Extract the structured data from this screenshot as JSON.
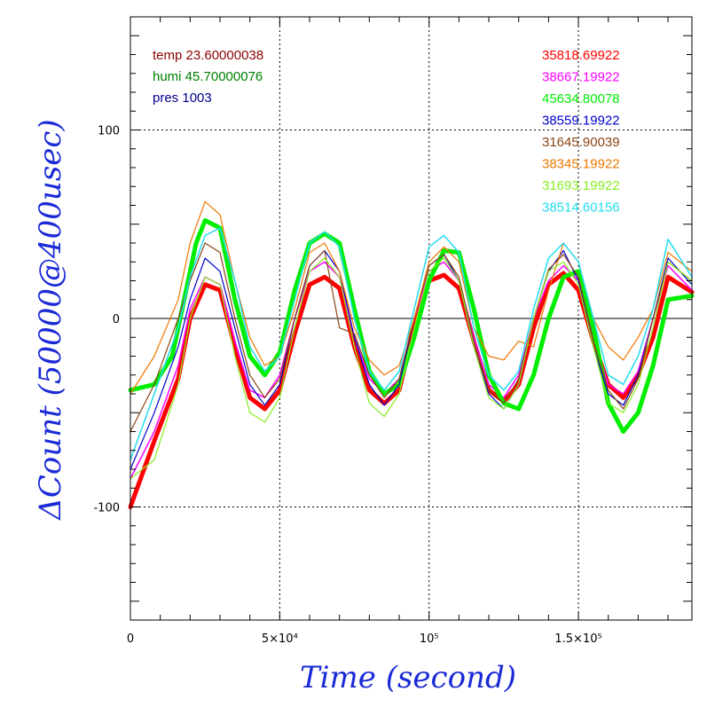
{
  "chart_data": {
    "type": "line",
    "xlabel": "Time (second)",
    "ylabel": "ΔCount (50000@400usec)",
    "xlim": [
      0,
      188000
    ],
    "ylim": [
      -160,
      160
    ],
    "x_tick_labels": [
      {
        "value": 0,
        "label": "0"
      },
      {
        "value": 50000,
        "label": "5×10⁴"
      },
      {
        "value": 100000,
        "label": "10⁵"
      },
      {
        "value": 150000,
        "label": "1.5×10⁵"
      }
    ],
    "y_tick_labels": [
      {
        "value": 100,
        "label": "100"
      },
      {
        "value": 0,
        "label": "0"
      },
      {
        "value": -100,
        "label": "-100"
      }
    ],
    "grid": true,
    "zero_line": true,
    "env_legend": [
      {
        "text": "temp 23.60000038",
        "color": "#8b0000"
      },
      {
        "text": "humi 45.70000076",
        "color": "#008000"
      },
      {
        "text": "pres 1003",
        "color": "#00008b"
      }
    ],
    "series": [
      {
        "name": "35818.69922",
        "color": "#ff0000",
        "width": 5,
        "x": [
          0,
          8000,
          16000,
          20000,
          25000,
          30000,
          35000,
          40000,
          45000,
          50000,
          55000,
          60000,
          65000,
          70000,
          75000,
          80000,
          85000,
          90000,
          95000,
          100000,
          105000,
          110000,
          115000,
          120000,
          125000,
          130000,
          135000,
          140000,
          145000,
          150000,
          155000,
          160000,
          165000,
          170000,
          175000,
          180000,
          188000
        ],
        "y": [
          -100,
          -65,
          -32,
          0,
          18,
          15,
          -15,
          -42,
          -48,
          -38,
          -8,
          18,
          22,
          16,
          -15,
          -38,
          -45,
          -38,
          -5,
          20,
          23,
          16,
          -12,
          -38,
          -44,
          -35,
          -5,
          18,
          24,
          15,
          -12,
          -35,
          -42,
          -30,
          -10,
          22,
          14
        ]
      },
      {
        "name": "38667.19922",
        "color": "#ff00ff",
        "width": 1.5,
        "x": [
          0,
          8000,
          16000,
          20000,
          25000,
          30000,
          35000,
          40000,
          45000,
          50000,
          55000,
          60000,
          65000,
          70000,
          75000,
          80000,
          85000,
          90000,
          95000,
          100000,
          105000,
          110000,
          115000,
          120000,
          125000,
          130000,
          135000,
          140000,
          145000,
          150000,
          155000,
          160000,
          165000,
          170000,
          175000,
          180000,
          188000
        ],
        "y": [
          -85,
          -60,
          -25,
          5,
          22,
          18,
          -12,
          -38,
          -42,
          -30,
          0,
          25,
          30,
          22,
          -10,
          -32,
          -40,
          -32,
          0,
          25,
          30,
          20,
          -10,
          -35,
          -42,
          -30,
          0,
          20,
          28,
          20,
          -10,
          -35,
          -40,
          -28,
          0,
          28,
          15
        ]
      },
      {
        "name": "45634.80078",
        "color": "#00ee00",
        "width": 5,
        "x": [
          0,
          8000,
          14000,
          18000,
          22000,
          25000,
          30000,
          35000,
          40000,
          45000,
          50000,
          55000,
          60000,
          65000,
          70000,
          75000,
          80000,
          85000,
          90000,
          95000,
          100000,
          105000,
          110000,
          115000,
          120000,
          125000,
          130000,
          135000,
          140000,
          145000,
          150000,
          155000,
          160000,
          165000,
          170000,
          175000,
          180000,
          188000
        ],
        "y": [
          -38,
          -35,
          -20,
          10,
          40,
          52,
          48,
          10,
          -20,
          -30,
          -18,
          15,
          40,
          45,
          40,
          5,
          -28,
          -40,
          -35,
          -10,
          20,
          36,
          35,
          5,
          -30,
          -45,
          -48,
          -30,
          0,
          22,
          25,
          -5,
          -45,
          -60,
          -50,
          -25,
          10,
          12
        ]
      },
      {
        "name": "38559.19922",
        "color": "#0000cc",
        "width": 1.2,
        "x": [
          0,
          8000,
          16000,
          20000,
          25000,
          30000,
          35000,
          40000,
          45000,
          50000,
          55000,
          60000,
          65000,
          70000,
          75000,
          80000,
          85000,
          90000,
          95000,
          100000,
          105000,
          110000,
          115000,
          120000,
          125000,
          130000,
          135000,
          140000,
          145000,
          150000,
          155000,
          160000,
          165000,
          170000,
          175000,
          180000,
          188000
        ],
        "y": [
          -80,
          -50,
          -15,
          10,
          32,
          25,
          -5,
          -35,
          -46,
          -35,
          0,
          28,
          36,
          25,
          -10,
          -35,
          -46,
          -35,
          0,
          28,
          34,
          20,
          -15,
          -40,
          -48,
          -35,
          0,
          25,
          36,
          20,
          -15,
          -40,
          -46,
          -30,
          0,
          32,
          18
        ]
      },
      {
        "name": "31645.90039",
        "color": "#8b4513",
        "width": 1.2,
        "x": [
          0,
          8000,
          16000,
          20000,
          25000,
          30000,
          35000,
          40000,
          45000,
          50000,
          55000,
          60000,
          65000,
          70000,
          75000,
          80000,
          85000,
          90000,
          95000,
          100000,
          105000,
          110000,
          115000,
          120000,
          125000,
          130000,
          135000,
          140000,
          145000,
          150000,
          155000,
          160000,
          165000,
          170000,
          175000,
          180000,
          188000
        ],
        "y": [
          -60,
          -35,
          0,
          20,
          40,
          35,
          0,
          -30,
          -42,
          -32,
          0,
          28,
          36,
          -5,
          -8,
          -30,
          -42,
          -32,
          0,
          28,
          34,
          22,
          -12,
          -38,
          -45,
          -32,
          0,
          26,
          34,
          22,
          -12,
          -38,
          -48,
          -32,
          0,
          30,
          20
        ]
      },
      {
        "name": "38345.19922",
        "color": "#ee7700",
        "width": 1.2,
        "x": [
          0,
          8000,
          16000,
          20000,
          25000,
          30000,
          35000,
          40000,
          45000,
          50000,
          55000,
          60000,
          65000,
          70000,
          75000,
          80000,
          85000,
          90000,
          95000,
          100000,
          105000,
          110000,
          115000,
          120000,
          125000,
          130000,
          135000,
          140000,
          145000,
          150000,
          155000,
          160000,
          165000,
          170000,
          175000,
          180000,
          188000
        ],
        "y": [
          -40,
          -20,
          10,
          40,
          62,
          55,
          20,
          -10,
          -25,
          -20,
          5,
          35,
          40,
          25,
          -5,
          -22,
          -30,
          -25,
          0,
          30,
          38,
          30,
          -5,
          -20,
          -22,
          -12,
          -15,
          15,
          40,
          30,
          0,
          -15,
          -22,
          -10,
          5,
          35,
          25
        ]
      },
      {
        "name": "31693.19922",
        "color": "#88ee22",
        "width": 1.2,
        "x": [
          0,
          8000,
          16000,
          20000,
          25000,
          30000,
          35000,
          40000,
          45000,
          50000,
          55000,
          60000,
          65000,
          70000,
          75000,
          80000,
          85000,
          90000,
          95000,
          100000,
          105000,
          110000,
          115000,
          120000,
          125000,
          130000,
          135000,
          140000,
          145000,
          150000,
          155000,
          160000,
          165000,
          170000,
          175000,
          180000,
          188000
        ],
        "y": [
          -85,
          -75,
          -35,
          0,
          22,
          18,
          -20,
          -50,
          -55,
          -42,
          -5,
          25,
          32,
          22,
          -15,
          -45,
          -52,
          -40,
          -5,
          25,
          32,
          20,
          -15,
          -42,
          -48,
          -35,
          0,
          25,
          30,
          18,
          -15,
          -45,
          -50,
          -35,
          -5,
          30,
          20
        ]
      },
      {
        "name": "38514.60156",
        "color": "#22ddee",
        "width": 1.5,
        "x": [
          0,
          8000,
          16000,
          20000,
          25000,
          30000,
          35000,
          40000,
          45000,
          50000,
          55000,
          60000,
          65000,
          70000,
          75000,
          80000,
          85000,
          90000,
          95000,
          100000,
          105000,
          110000,
          115000,
          120000,
          125000,
          130000,
          135000,
          140000,
          145000,
          150000,
          155000,
          160000,
          165000,
          170000,
          175000,
          180000,
          188000
        ],
        "y": [
          -75,
          -40,
          -5,
          22,
          44,
          48,
          20,
          -15,
          -28,
          -20,
          10,
          40,
          46,
          38,
          0,
          -28,
          -38,
          -28,
          5,
          38,
          44,
          35,
          -5,
          -30,
          -38,
          -28,
          5,
          32,
          40,
          30,
          0,
          -30,
          -35,
          -20,
          5,
          42,
          22
        ]
      }
    ]
  }
}
